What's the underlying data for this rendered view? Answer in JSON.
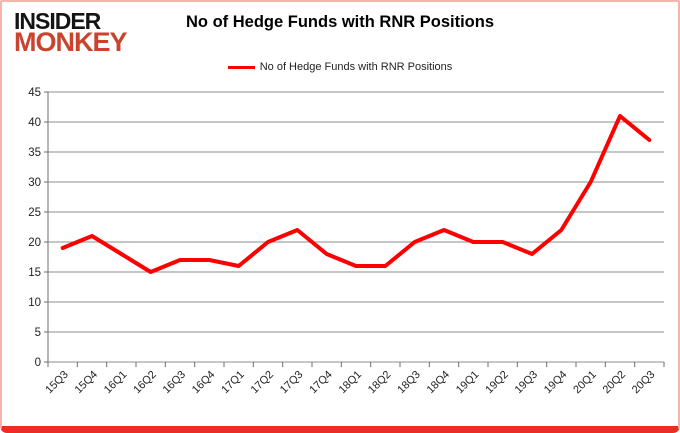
{
  "logo": {
    "line1": "INSIDER",
    "line2": "MONKEY"
  },
  "header": {
    "title": "No of Hedge Funds with RNR Positions"
  },
  "legend": {
    "label": "No of Hedge Funds with RNR Positions"
  },
  "colors": {
    "series": "#fe0000",
    "logo_red": "#c9432f",
    "grid": "#8e8e8e",
    "axis": "#6e6e6e",
    "tick_text": "#1f1f1f",
    "frame_side": "#f5b3ac",
    "frame_bottom": "#ee2d1f"
  },
  "chart_data": {
    "type": "line",
    "title": "No of Hedge Funds with RNR Positions",
    "categories": [
      "15Q3",
      "15Q4",
      "16Q1",
      "16Q2",
      "16Q3",
      "16Q4",
      "17Q1",
      "17Q2",
      "17Q3",
      "17Q4",
      "18Q1",
      "18Q2",
      "18Q3",
      "18Q4",
      "19Q1",
      "19Q2",
      "19Q3",
      "19Q4",
      "20Q1",
      "20Q2",
      "20Q3"
    ],
    "series": [
      {
        "name": "No of Hedge Funds with RNR Positions",
        "values": [
          19,
          21,
          18,
          15,
          17,
          17,
          16,
          20,
          22,
          18,
          16,
          16,
          20,
          22,
          20,
          20,
          18,
          22,
          30,
          41,
          37
        ],
        "color": "#fe0000"
      }
    ],
    "xlabel": "",
    "ylabel": "",
    "ylim": [
      0,
      45
    ],
    "ytick_step": 5,
    "grid": true,
    "legend_position": "top-center"
  }
}
